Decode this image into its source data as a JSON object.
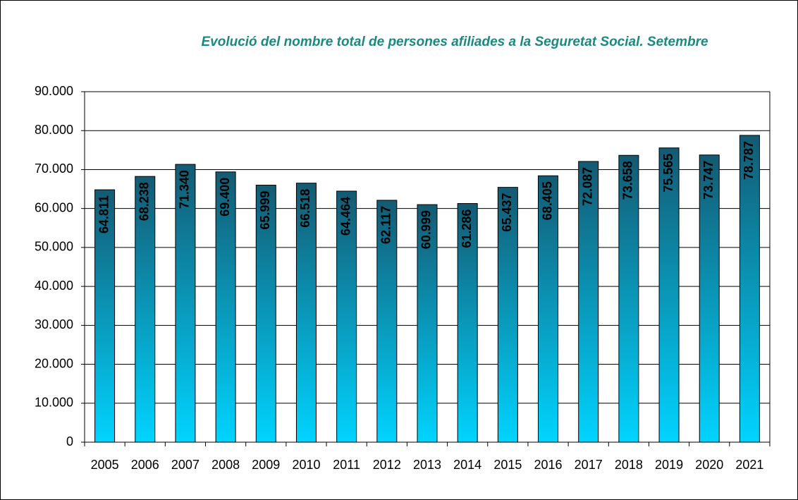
{
  "chart_data": {
    "type": "bar",
    "title": "Evolució del nombre total de persones afiliades a la Seguretat Social. Setembre",
    "categories": [
      "2005",
      "2006",
      "2007",
      "2008",
      "2009",
      "2010",
      "2011",
      "2012",
      "2013",
      "2014",
      "2015",
      "2016",
      "2017",
      "2018",
      "2019",
      "2020",
      "2021"
    ],
    "values": [
      64811,
      68238,
      71340,
      69400,
      65999,
      66518,
      64464,
      62117,
      60999,
      61286,
      65437,
      68405,
      72087,
      73658,
      75565,
      73747,
      78787
    ],
    "value_labels": [
      "64.811",
      "68.238",
      "71.340",
      "69.400",
      "65.999",
      "66.518",
      "64.464",
      "62.117",
      "60.999",
      "61.286",
      "65.437",
      "68.405",
      "72.087",
      "73.658",
      "75.565",
      "73.747",
      "78.787"
    ],
    "gradient": [
      "#145a72",
      "#00d4ff"
    ],
    "ylim": [
      0,
      90000
    ],
    "yticks": [
      0,
      {
        "value": 10000,
        "label": "10.000"
      },
      {
        "value": 20000,
        "label": "20.000"
      },
      {
        "value": 30000,
        "label": "30.000"
      },
      {
        "value": 40000,
        "label": "40.000"
      },
      {
        "value": 50000,
        "label": "50.000"
      },
      {
        "value": 60000,
        "label": "60.000"
      },
      {
        "value": 70000,
        "label": "70.000"
      },
      {
        "value": 80000,
        "label": "80.000"
      },
      {
        "value": 90000,
        "label": "90.000"
      }
    ],
    "grid": true
  }
}
